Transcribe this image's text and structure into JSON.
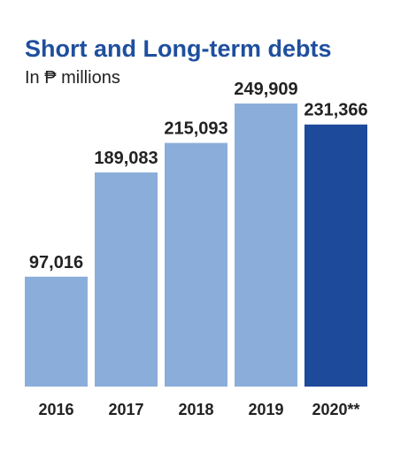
{
  "chart_data": {
    "type": "bar",
    "title": "Short and Long-term debts",
    "subtitle": "In ₱ millions",
    "categories": [
      "2016",
      "2017",
      "2018",
      "2019",
      "2020**"
    ],
    "values": [
      97016,
      189083,
      215093,
      249909,
      231366
    ],
    "value_labels": [
      "97,016",
      "189,083",
      "215,093",
      "249,909",
      "231,366"
    ],
    "colors": [
      "#8badda",
      "#8badda",
      "#8badda",
      "#8badda",
      "#1e4a9b"
    ]
  }
}
